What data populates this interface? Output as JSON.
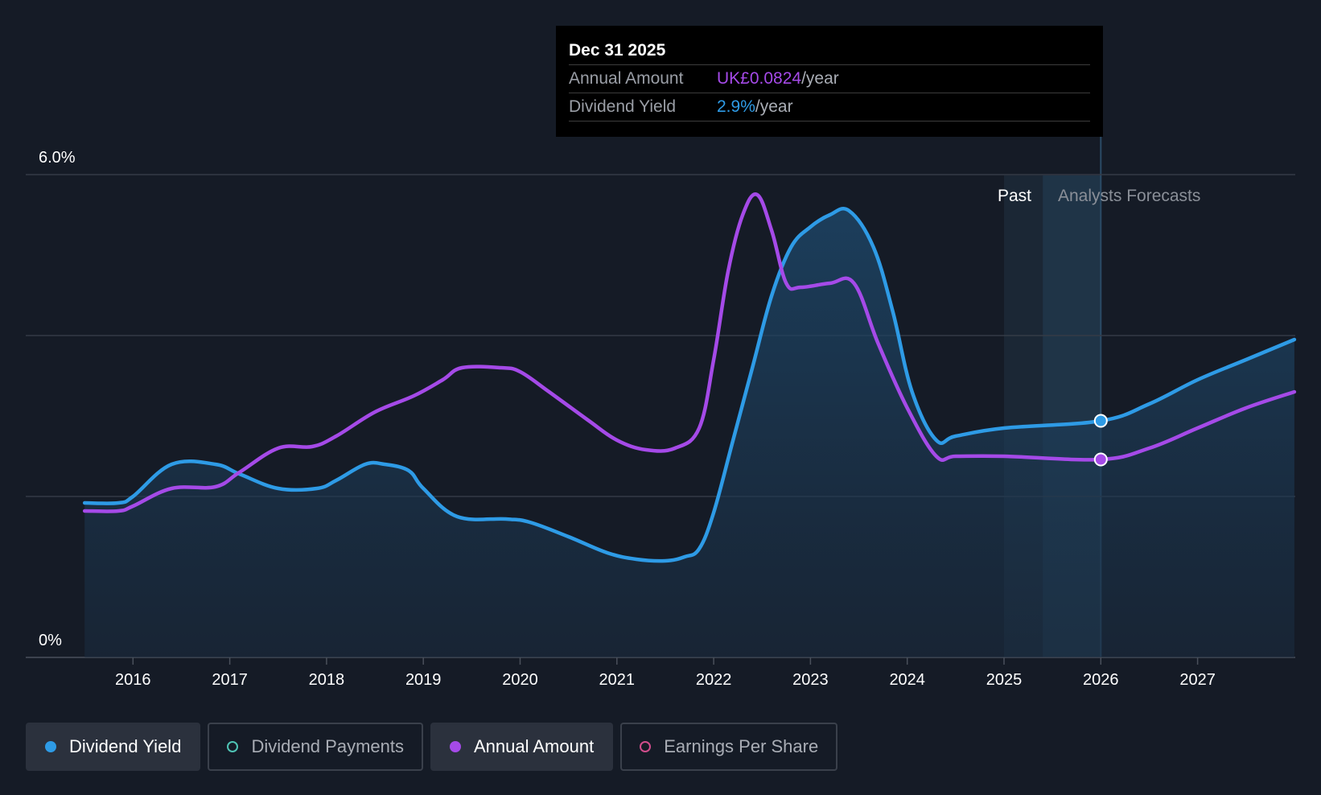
{
  "tooltip": {
    "date": "Dec 31 2025",
    "rows": [
      {
        "label": "Annual Amount",
        "value": "UK£0.0824",
        "unit": "/year",
        "color": "#a54ae8"
      },
      {
        "label": "Dividend Yield",
        "value": "2.9%",
        "unit": "/year",
        "color": "#2e9be6"
      }
    ]
  },
  "legend": [
    {
      "label": "Dividend Yield",
      "active": true,
      "dot": "filled",
      "color": "#2e9be6"
    },
    {
      "label": "Dividend Payments",
      "active": false,
      "dot": "hollow",
      "color": "#4fc3b4"
    },
    {
      "label": "Annual Amount",
      "active": true,
      "dot": "filled",
      "color": "#a54ae8"
    },
    {
      "label": "Earnings Per Share",
      "active": false,
      "dot": "hollow",
      "color": "#d14d8c"
    }
  ],
  "colors": {
    "background": "#151b26",
    "yield": "#2e9be6",
    "amount": "#a54ae8",
    "grid": "#353b46"
  },
  "chart_data": {
    "type": "line",
    "y_axis": {
      "range": [
        0,
        6
      ],
      "top_label": "6.0%",
      "bottom_label": "0%"
    },
    "x_range": [
      2015.0,
      2028.0
    ],
    "x_ticks": [
      2016,
      2017,
      2018,
      2019,
      2020,
      2021,
      2022,
      2023,
      2024,
      2025,
      2026,
      2027
    ],
    "regions": {
      "past_label": "Past",
      "forecast_label": "Analysts Forecasts",
      "current_x": 2026.0
    },
    "series": [
      {
        "name": "Dividend Yield",
        "color": "#2e9be6",
        "filled": true,
        "points": [
          [
            2015.5,
            1.92
          ],
          [
            2015.85,
            1.92
          ],
          [
            2016.0,
            2.0
          ],
          [
            2016.4,
            2.4
          ],
          [
            2016.85,
            2.4
          ],
          [
            2017.1,
            2.28
          ],
          [
            2017.5,
            2.1
          ],
          [
            2017.9,
            2.1
          ],
          [
            2018.1,
            2.2
          ],
          [
            2018.4,
            2.4
          ],
          [
            2018.6,
            2.4
          ],
          [
            2018.85,
            2.32
          ],
          [
            2019.0,
            2.1
          ],
          [
            2019.35,
            1.75
          ],
          [
            2019.85,
            1.72
          ],
          [
            2020.1,
            1.68
          ],
          [
            2020.5,
            1.5
          ],
          [
            2020.9,
            1.3
          ],
          [
            2021.2,
            1.22
          ],
          [
            2021.5,
            1.2
          ],
          [
            2021.7,
            1.25
          ],
          [
            2021.85,
            1.35
          ],
          [
            2022.0,
            1.8
          ],
          [
            2022.2,
            2.7
          ],
          [
            2022.4,
            3.6
          ],
          [
            2022.6,
            4.5
          ],
          [
            2022.8,
            5.1
          ],
          [
            2023.0,
            5.35
          ],
          [
            2023.2,
            5.5
          ],
          [
            2023.4,
            5.55
          ],
          [
            2023.65,
            5.1
          ],
          [
            2023.85,
            4.3
          ],
          [
            2024.05,
            3.3
          ],
          [
            2024.3,
            2.7
          ],
          [
            2024.5,
            2.75
          ],
          [
            2025.0,
            2.85
          ],
          [
            2026.0,
            2.94
          ],
          [
            2026.5,
            3.15
          ],
          [
            2027.0,
            3.45
          ],
          [
            2027.5,
            3.7
          ],
          [
            2028.0,
            3.95
          ]
        ]
      },
      {
        "name": "Annual Amount",
        "color": "#a54ae8",
        "filled": false,
        "points": [
          [
            2015.5,
            1.82
          ],
          [
            2015.85,
            1.82
          ],
          [
            2016.0,
            1.88
          ],
          [
            2016.4,
            2.1
          ],
          [
            2016.85,
            2.12
          ],
          [
            2017.1,
            2.3
          ],
          [
            2017.5,
            2.6
          ],
          [
            2017.85,
            2.62
          ],
          [
            2018.1,
            2.75
          ],
          [
            2018.5,
            3.05
          ],
          [
            2018.9,
            3.25
          ],
          [
            2019.2,
            3.45
          ],
          [
            2019.4,
            3.6
          ],
          [
            2019.8,
            3.6
          ],
          [
            2020.0,
            3.55
          ],
          [
            2020.3,
            3.3
          ],
          [
            2020.7,
            2.95
          ],
          [
            2021.0,
            2.7
          ],
          [
            2021.3,
            2.58
          ],
          [
            2021.6,
            2.6
          ],
          [
            2021.85,
            2.85
          ],
          [
            2022.0,
            3.7
          ],
          [
            2022.15,
            4.8
          ],
          [
            2022.3,
            5.5
          ],
          [
            2022.45,
            5.75
          ],
          [
            2022.6,
            5.3
          ],
          [
            2022.75,
            4.65
          ],
          [
            2022.9,
            4.6
          ],
          [
            2023.2,
            4.65
          ],
          [
            2023.45,
            4.65
          ],
          [
            2023.7,
            3.9
          ],
          [
            2024.0,
            3.1
          ],
          [
            2024.3,
            2.5
          ],
          [
            2024.5,
            2.5
          ],
          [
            2025.0,
            2.5
          ],
          [
            2026.0,
            2.46
          ],
          [
            2026.5,
            2.6
          ],
          [
            2027.0,
            2.85
          ],
          [
            2027.5,
            3.1
          ],
          [
            2028.0,
            3.3
          ]
        ]
      }
    ]
  }
}
